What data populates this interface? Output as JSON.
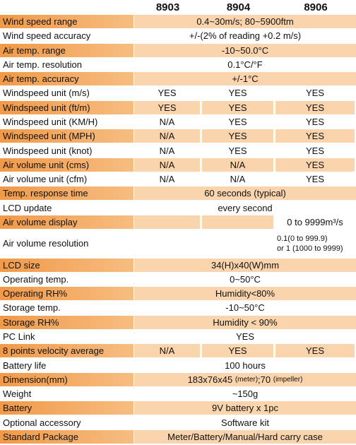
{
  "header": {
    "columns": [
      "8903",
      "8904",
      "8906"
    ]
  },
  "table": {
    "rows": [
      {
        "label": "Wind speed range",
        "cells": [
          "0.4~30m/s; 80~5900ftm"
        ]
      },
      {
        "label": "Wind speed accuracy",
        "cells": [
          "+/-(2% of reading +0.2 m/s)"
        ]
      },
      {
        "label": "Air temp. range",
        "cells": [
          "-10~50.0°C"
        ]
      },
      {
        "label": "Air temp. resolution",
        "cells": [
          "0.1°C/°F"
        ]
      },
      {
        "label": "Air temp. accuracy",
        "cells": [
          "+/-1°C"
        ]
      },
      {
        "label": "Windspeed unit (m/s)",
        "cells": [
          "YES",
          "YES",
          "YES"
        ]
      },
      {
        "label": "Windspeed unit (ft/m)",
        "cells": [
          "YES",
          "YES",
          "YES"
        ]
      },
      {
        "label": "Windspeed unit (KM/H)",
        "cells": [
          "N/A",
          "YES",
          "YES"
        ]
      },
      {
        "label": "Windspeed unit (MPH)",
        "cells": [
          "N/A",
          "YES",
          "YES"
        ]
      },
      {
        "label": "Windspeed unit (knot)",
        "cells": [
          "N/A",
          "YES",
          "YES"
        ]
      },
      {
        "label": "Air volume unit (cms)",
        "cells": [
          "N/A",
          "N/A",
          "YES"
        ]
      },
      {
        "label": "Air volume unit (cfm)",
        "cells": [
          "N/A",
          "N/A",
          "YES"
        ]
      },
      {
        "label": "Temp. response time",
        "cells": [
          "60 seconds (typical)"
        ]
      },
      {
        "label": "LCD update",
        "cells": [
          "every second"
        ]
      },
      {
        "label": "Air volume display",
        "cells": [
          null,
          null,
          "0 to 9999m³/s"
        ]
      },
      {
        "label": "Air volume resolution",
        "cells": [
          null,
          null,
          {
            "lines": [
              "0.1(0 to 999.9)",
              "or 1 (1000 to 9999)"
            ]
          }
        ]
      },
      {
        "label": "LCD size",
        "cells": [
          "34(H)x40(W)mm"
        ]
      },
      {
        "label": "Operating temp.",
        "cells": [
          "0~50°C"
        ]
      },
      {
        "label": "Operating RH%",
        "cells": [
          "Humidity<80%"
        ]
      },
      {
        "label": "Storage temp.",
        "cells": [
          "-10~50°C"
        ]
      },
      {
        "label": "Storage RH%",
        "cells": [
          "Humidity < 90%"
        ]
      },
      {
        "label": "PC Link",
        "cells": [
          "YES"
        ]
      },
      {
        "label": "8 points velocity average",
        "cells": [
          "N/A",
          "YES",
          "YES"
        ]
      },
      {
        "label": "Battery life",
        "cells": [
          "100 hours"
        ]
      },
      {
        "label": "Dimension(mm)",
        "cells": [
          {
            "parts": [
              "183x76x45 ",
              "(meter)",
              ";70 ",
              "(impeller)"
            ]
          }
        ]
      },
      {
        "label": "Weight",
        "cells": [
          "~150g"
        ]
      },
      {
        "label": "Battery",
        "cells": [
          "9V battery x 1pc"
        ]
      },
      {
        "label": "Optional accessory",
        "cells": [
          "Software kit"
        ]
      },
      {
        "label": "Standard Package",
        "cells": [
          "Meter/Battery/Manual/Hard carry case"
        ]
      }
    ]
  }
}
